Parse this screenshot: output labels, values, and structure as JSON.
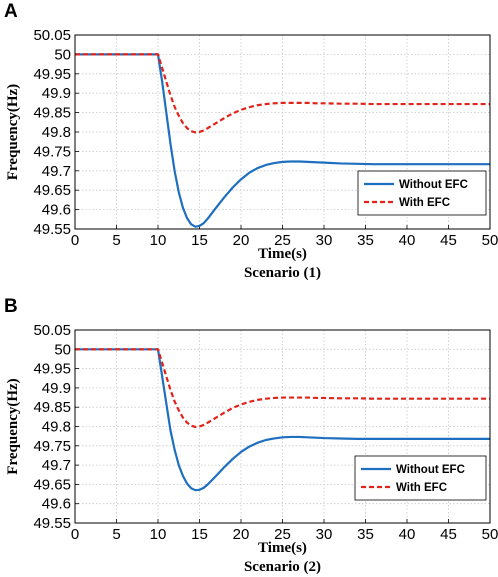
{
  "chart_data": [
    {
      "panel_label": "A",
      "type": "line",
      "title": "Scenario (1)",
      "xlabel": "Time(s)",
      "ylabel": "Frequency(Hz)",
      "xlim": [
        0,
        50
      ],
      "ylim": [
        49.55,
        50.05
      ],
      "xticks": [
        "0",
        "5",
        "10",
        "15",
        "20",
        "25",
        "30",
        "35",
        "40",
        "45",
        "50"
      ],
      "yticks": [
        "50.05",
        "50",
        "49.95",
        "49.9",
        "49.85",
        "49.8",
        "49.75",
        "49.7",
        "49.65",
        "49.6",
        "49.55"
      ],
      "grid": true,
      "legend_position": "bottom-right",
      "series": [
        {
          "name": "Without EFC",
          "color": "#1f6fc0",
          "style": "solid",
          "x": [
            0,
            10,
            10.5,
            11,
            11.5,
            12,
            12.5,
            13,
            13.5,
            14,
            14.5,
            15,
            15.5,
            16,
            17,
            18,
            19,
            20,
            21,
            22,
            23,
            24,
            25,
            26,
            27,
            28,
            29,
            30,
            32,
            34,
            36,
            38,
            40,
            45,
            50
          ],
          "y": [
            50.0,
            50.0,
            49.93,
            49.85,
            49.77,
            49.7,
            49.645,
            49.605,
            49.578,
            49.562,
            49.556,
            49.558,
            49.565,
            49.577,
            49.605,
            49.632,
            49.657,
            49.678,
            49.695,
            49.707,
            49.715,
            49.72,
            49.723,
            49.724,
            49.724,
            49.723,
            49.722,
            49.721,
            49.719,
            49.718,
            49.717,
            49.717,
            49.717,
            49.717,
            49.717
          ]
        },
        {
          "name": "With EFC",
          "color": "#e2231a",
          "style": "dashed",
          "x": [
            0,
            10,
            10.5,
            11,
            11.5,
            12,
            12.5,
            13,
            13.5,
            14,
            14.5,
            15,
            15.5,
            16,
            17,
            18,
            19,
            20,
            21,
            22,
            23,
            24,
            25,
            26,
            27,
            28,
            29,
            30,
            32,
            34,
            36,
            38,
            40,
            45,
            50
          ],
          "y": [
            50.0,
            50.0,
            49.965,
            49.93,
            49.895,
            49.865,
            49.842,
            49.823,
            49.81,
            49.802,
            49.799,
            49.8,
            49.804,
            49.81,
            49.823,
            49.836,
            49.848,
            49.857,
            49.864,
            49.869,
            49.872,
            49.874,
            49.875,
            49.875,
            49.875,
            49.875,
            49.874,
            49.874,
            49.873,
            49.873,
            49.872,
            49.872,
            49.872,
            49.872,
            49.872
          ]
        }
      ]
    },
    {
      "panel_label": "B",
      "type": "line",
      "title": "Scenario (2)",
      "xlabel": "Time(s)",
      "ylabel": "Frequency(Hz)",
      "xlim": [
        0,
        50
      ],
      "ylim": [
        49.55,
        50.05
      ],
      "xticks": [
        "0",
        "5",
        "10",
        "15",
        "20",
        "25",
        "30",
        "35",
        "40",
        "45",
        "50"
      ],
      "yticks": [
        "50.05",
        "50",
        "49.95",
        "49.9",
        "49.85",
        "49.8",
        "49.75",
        "49.7",
        "49.65",
        "49.6",
        "49.55"
      ],
      "grid": true,
      "legend_position": "bottom-right",
      "series": [
        {
          "name": "Without EFC",
          "color": "#1f6fc0",
          "style": "solid",
          "x": [
            0,
            10,
            10.5,
            11,
            11.5,
            12,
            12.5,
            13,
            13.5,
            14,
            14.5,
            15,
            15.5,
            16,
            17,
            18,
            19,
            20,
            21,
            22,
            23,
            24,
            25,
            26,
            27,
            28,
            29,
            30,
            32,
            34,
            36,
            38,
            40,
            45,
            50
          ],
          "y": [
            50.0,
            50.0,
            49.93,
            49.86,
            49.79,
            49.74,
            49.7,
            49.672,
            49.652,
            49.64,
            49.635,
            49.636,
            49.641,
            49.65,
            49.672,
            49.695,
            49.716,
            49.734,
            49.748,
            49.758,
            49.765,
            49.769,
            49.772,
            49.773,
            49.773,
            49.772,
            49.771,
            49.77,
            49.769,
            49.768,
            49.768,
            49.768,
            49.768,
            49.768,
            49.768
          ]
        },
        {
          "name": "With EFC",
          "color": "#e2231a",
          "style": "dashed",
          "x": [
            0,
            10,
            10.5,
            11,
            11.5,
            12,
            12.5,
            13,
            13.5,
            14,
            14.5,
            15,
            15.5,
            16,
            17,
            18,
            19,
            20,
            21,
            22,
            23,
            24,
            25,
            26,
            27,
            28,
            29,
            30,
            32,
            34,
            36,
            38,
            40,
            45,
            50
          ],
          "y": [
            50.0,
            50.0,
            49.965,
            49.93,
            49.895,
            49.865,
            49.842,
            49.823,
            49.81,
            49.802,
            49.799,
            49.8,
            49.804,
            49.81,
            49.823,
            49.836,
            49.848,
            49.857,
            49.864,
            49.869,
            49.872,
            49.874,
            49.875,
            49.875,
            49.875,
            49.875,
            49.874,
            49.874,
            49.873,
            49.873,
            49.872,
            49.872,
            49.872,
            49.872,
            49.872
          ]
        }
      ]
    }
  ]
}
